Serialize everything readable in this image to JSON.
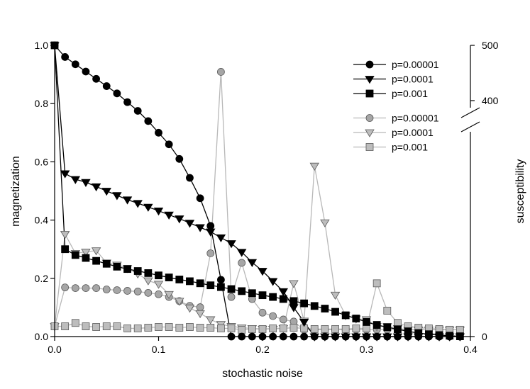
{
  "chart_data": {
    "type": "line",
    "title": "",
    "xlabel": "stochastic noise",
    "ylabel": "magnetization",
    "ylabel_right": "susceptibility",
    "xlim": [
      0,
      0.4
    ],
    "ylim": [
      0,
      1.0
    ],
    "ylim_right": [
      0,
      500
    ],
    "right_axis_break": "between 300 and 400",
    "x_ticks": [
      "0.0",
      "0.1",
      "0.2",
      "0.3",
      "0.4"
    ],
    "y_ticks": [
      "0.0",
      "0.2",
      "0.4",
      "0.6",
      "0.8",
      "1.0"
    ],
    "y_right_ticks": [
      "0",
      "400",
      "500"
    ],
    "grid": false,
    "legend_position": "top-right",
    "x": [
      0.0,
      0.01,
      0.02,
      0.03,
      0.04,
      0.05,
      0.06,
      0.07,
      0.08,
      0.09,
      0.1,
      0.11,
      0.12,
      0.13,
      0.14,
      0.15,
      0.16,
      0.17,
      0.18,
      0.19,
      0.2,
      0.21,
      0.22,
      0.23,
      0.24,
      0.25,
      0.26,
      0.27,
      0.28,
      0.29,
      0.3,
      0.31,
      0.32,
      0.33,
      0.34,
      0.35,
      0.36,
      0.37,
      0.38,
      0.39
    ],
    "series": [
      {
        "name": "p=0.00001",
        "axis": "left",
        "marker": "circle",
        "color": "#000000",
        "values": [
          1.0,
          0.96,
          0.935,
          0.91,
          0.885,
          0.86,
          0.835,
          0.805,
          0.775,
          0.74,
          0.7,
          0.66,
          0.61,
          0.545,
          0.475,
          0.38,
          0.195,
          0.0,
          0.0,
          0.0,
          0.0,
          0.0,
          0.0,
          0.0,
          0.0,
          0.0,
          0.0,
          0.0,
          0.0,
          0.0,
          0.0,
          0.0,
          0.0,
          0.0,
          0.0,
          0.0,
          0.0,
          0.0,
          0.0,
          0.0
        ]
      },
      {
        "name": "p=0.0001",
        "axis": "left",
        "marker": "triangle-down",
        "color": "#000000",
        "values": [
          1.0,
          0.56,
          0.54,
          0.53,
          0.515,
          0.5,
          0.485,
          0.47,
          0.458,
          0.445,
          0.432,
          0.418,
          0.405,
          0.39,
          0.375,
          0.36,
          0.34,
          0.32,
          0.29,
          0.255,
          0.225,
          0.19,
          0.155,
          0.1,
          0.05,
          0.0,
          0.0,
          0.0,
          0.0,
          0.0,
          0.0,
          0.0,
          0.0,
          0.0,
          0.0,
          0.0,
          0.0,
          0.0,
          0.0,
          0.0
        ]
      },
      {
        "name": "p=0.001",
        "axis": "left",
        "marker": "square",
        "color": "#000000",
        "values": [
          1.0,
          0.3,
          0.28,
          0.27,
          0.26,
          0.25,
          0.24,
          0.232,
          0.225,
          0.218,
          0.21,
          0.203,
          0.196,
          0.19,
          0.183,
          0.176,
          0.17,
          0.163,
          0.156,
          0.149,
          0.142,
          0.136,
          0.129,
          0.122,
          0.114,
          0.105,
          0.096,
          0.085,
          0.073,
          0.062,
          0.05,
          0.04,
          0.032,
          0.025,
          0.018,
          0.012,
          0.008,
          0.005,
          0.003,
          0.001
        ]
      },
      {
        "name": "p=0.00001",
        "axis": "right",
        "marker": "circle",
        "color": "#a6a6a6",
        "values": [
          15,
          72,
          71,
          71,
          71,
          69,
          68,
          67,
          66,
          64,
          62,
          58,
          52,
          45,
          43,
          122,
          452,
          58,
          108,
          55,
          35,
          30,
          25,
          22,
          10,
          10,
          10,
          10,
          10,
          10,
          10,
          10,
          10,
          10,
          10,
          10,
          10,
          10,
          10,
          10
        ]
      },
      {
        "name": "p=0.0001",
        "axis": "right",
        "marker": "triangle-down",
        "color": "#bdbdbd",
        "values": [
          15,
          150,
          122,
          124,
          126,
          108,
          105,
          100,
          92,
          82,
          77,
          62,
          52,
          42,
          34,
          25,
          18,
          15,
          13,
          12,
          11,
          11,
          12,
          78,
          23,
          250,
          167,
          61,
          31,
          26,
          25,
          15,
          15,
          12,
          10,
          10,
          10,
          10,
          10,
          10
        ]
      },
      {
        "name": "p=0.001",
        "axis": "right",
        "marker": "square",
        "color": "#bdbdbd",
        "values": [
          15,
          15,
          20,
          15,
          14,
          15,
          15,
          12,
          12,
          13,
          14,
          14,
          13,
          14,
          13,
          13,
          12,
          12,
          10,
          11,
          11,
          12,
          12,
          13,
          12,
          11,
          11,
          11,
          11,
          12,
          12,
          78,
          38,
          20,
          15,
          13,
          12,
          11,
          10,
          10
        ]
      }
    ]
  }
}
